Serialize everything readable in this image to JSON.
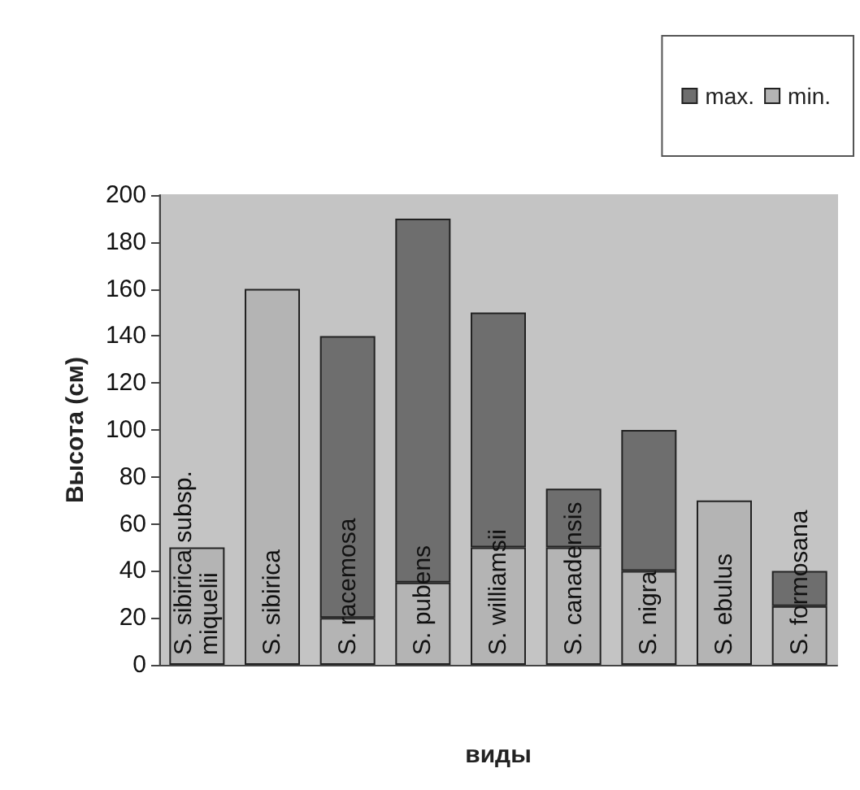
{
  "chart_data": {
    "type": "bar",
    "stacked": true,
    "xlabel": "виды",
    "ylabel": "Высота (см)",
    "categories": [
      "S. sibirica subsp. miquelii",
      "S. sibirica",
      "S. racemosa",
      "S. pubens",
      "S. williamsii",
      "S. canadensis",
      "S. nigra",
      "S. ebulus",
      "S. formosana"
    ],
    "series": [
      {
        "name": "min.",
        "color": "#b4b4b4",
        "values": [
          50,
          160,
          20,
          35,
          50,
          50,
          40,
          70,
          25
        ]
      },
      {
        "name": "max.",
        "color": "#6e6e6e",
        "values": [
          0,
          0,
          120,
          155,
          100,
          25,
          60,
          0,
          15
        ]
      }
    ],
    "ylim": [
      0,
      200
    ],
    "yticks": [
      0,
      20,
      40,
      60,
      80,
      100,
      120,
      140,
      160,
      180,
      200
    ],
    "grid": false,
    "legend": "top right"
  }
}
